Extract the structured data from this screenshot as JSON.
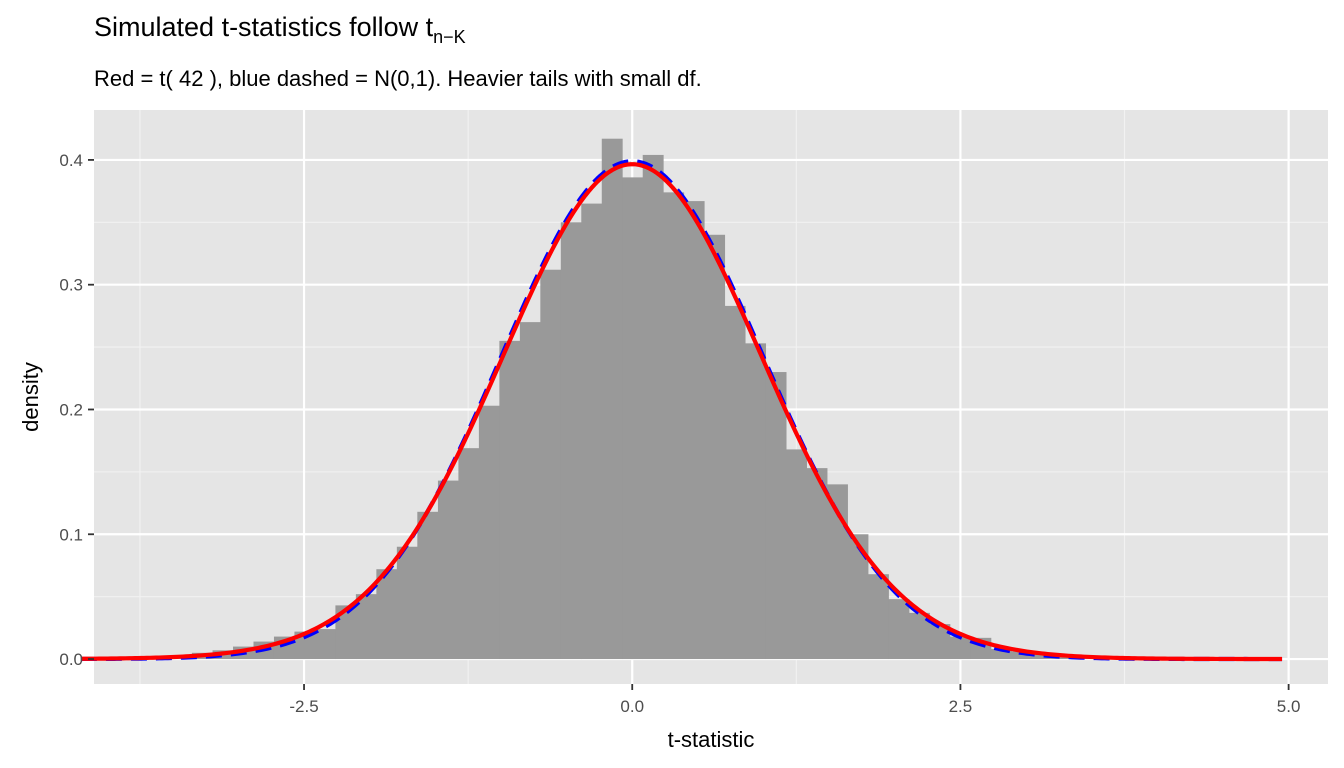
{
  "chart_data": {
    "type": "bar",
    "title": "Simulated t-statistics follow t",
    "title_subscript": "n−K",
    "subtitle": "Red = t( 42 ), blue dashed = N(0,1). Heavier tails with small df.",
    "xlabel": "t-statistic",
    "ylabel": "density",
    "xlim": [
      -4.1,
      5.3
    ],
    "ylim": [
      -0.02,
      0.44
    ],
    "x_ticks": [
      -2.5,
      0.0,
      2.5,
      5.0
    ],
    "x_tick_labels": [
      "-2.5",
      "0.0",
      "2.5",
      "5.0"
    ],
    "y_ticks": [
      0.0,
      0.1,
      0.2,
      0.3,
      0.4
    ],
    "y_tick_labels": [
      "0.0",
      "0.1",
      "0.2",
      "0.3",
      "0.4"
    ],
    "grid": true,
    "background": "#e5e5e5",
    "histogram": {
      "fill": "#999999",
      "bin_width": 0.1562,
      "bin_centers": [
        -3.9,
        -3.744,
        -3.588,
        -3.432,
        -3.276,
        -3.119,
        -2.963,
        -2.807,
        -2.651,
        -2.495,
        -2.339,
        -2.183,
        -2.027,
        -1.871,
        -1.715,
        -1.559,
        -1.402,
        -1.246,
        -1.09,
        -0.934,
        -0.778,
        -0.622,
        -0.466,
        -0.31,
        -0.154,
        0.002,
        0.158,
        0.314,
        0.47,
        0.626,
        0.782,
        0.938,
        1.094,
        1.25,
        1.406,
        1.562,
        1.718,
        1.874,
        2.03,
        2.186,
        2.342,
        2.498,
        2.654,
        2.81,
        2.966,
        3.122,
        3.278,
        3.434,
        3.59,
        3.746,
        3.902,
        4.058,
        4.214,
        4.37,
        4.526,
        4.682,
        4.838
      ],
      "densities": [
        0.001,
        0.0015,
        0.002,
        0.003,
        0.005,
        0.007,
        0.01,
        0.014,
        0.018,
        0.022,
        0.024,
        0.043,
        0.052,
        0.072,
        0.09,
        0.118,
        0.143,
        0.169,
        0.203,
        0.255,
        0.27,
        0.312,
        0.35,
        0.365,
        0.417,
        0.386,
        0.404,
        0.374,
        0.367,
        0.34,
        0.283,
        0.253,
        0.23,
        0.168,
        0.153,
        0.14,
        0.1,
        0.068,
        0.048,
        0.037,
        0.028,
        0.018,
        0.017,
        0.008,
        0.006,
        0.004,
        0.003,
        0.002,
        0.0015,
        0.001,
        0.001,
        0.0008,
        0.0006,
        0.0005,
        0.0004,
        0.0003,
        0.0002
      ]
    },
    "series": [
      {
        "name": "t( 42 )",
        "color": "#ff0000",
        "style": "solid",
        "distribution": "t",
        "df": 42,
        "x_range": [
          -4.2,
          4.95
        ]
      },
      {
        "name": "N(0,1)",
        "color": "#0000ff",
        "style": "dashed",
        "distribution": "normal",
        "x_range": [
          -4.2,
          4.95
        ]
      }
    ]
  }
}
